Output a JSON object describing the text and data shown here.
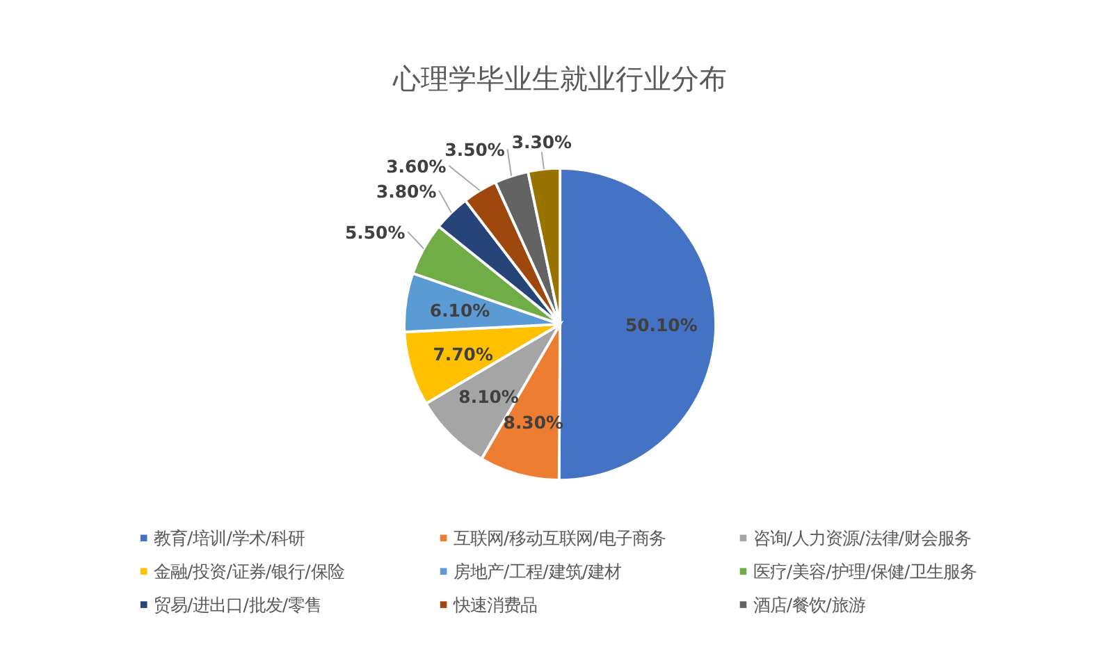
{
  "chart_data": {
    "type": "pie",
    "title": "心理学毕业生就业行业分布",
    "categories": [
      "教育/培训/学术/科研",
      "互联网/移动互联网/电子商务",
      "咨询/人力资源/法律/财会服务",
      "金融/投资/证券/银行/保险",
      "房地产/工程/建筑/建材",
      "医疗/美容/护理/保健/卫生服务",
      "贸易/进出口/批发/零售",
      "快速消费品",
      "酒店/餐饮/旅游",
      null
    ],
    "values": [
      50.1,
      8.3,
      8.1,
      7.7,
      6.1,
      5.5,
      3.8,
      3.6,
      3.5,
      3.3
    ],
    "value_labels": [
      "50.10%",
      "8.30%",
      "8.10%",
      "7.70%",
      "6.10%",
      "5.50%",
      "3.80%",
      "3.60%",
      "3.50%",
      "3.30%"
    ],
    "colors": [
      "#4472c4",
      "#ed7d31",
      "#a5a5a5",
      "#ffc000",
      "#5b9bd5",
      "#70ad47",
      "#264478",
      "#9e480e",
      "#636363",
      "#997300"
    ],
    "legend": "bottom"
  }
}
